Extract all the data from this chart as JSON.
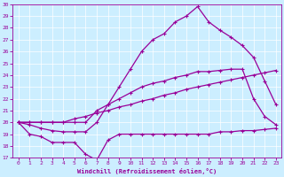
{
  "xlabel": "Windchill (Refroidissement éolien,°C)",
  "bg_color": "#cceeff",
  "line_color": "#990099",
  "xlim": [
    -0.5,
    23.5
  ],
  "ylim": [
    17,
    30
  ],
  "xticks": [
    0,
    1,
    2,
    3,
    4,
    5,
    6,
    7,
    8,
    9,
    10,
    11,
    12,
    13,
    14,
    15,
    16,
    17,
    18,
    19,
    20,
    21,
    22,
    23
  ],
  "yticks": [
    17,
    18,
    19,
    20,
    21,
    22,
    23,
    24,
    25,
    26,
    27,
    28,
    29,
    30
  ],
  "series": [
    {
      "x": [
        0,
        1,
        2,
        3,
        4,
        5,
        6,
        7,
        8,
        9,
        10,
        11,
        12,
        13,
        14,
        15,
        16,
        17,
        18,
        19,
        20,
        21,
        22,
        23
      ],
      "y": [
        20,
        19,
        18.8,
        18.3,
        18.3,
        18.3,
        17.3,
        16.8,
        18.5,
        19.0,
        19.0,
        19.0,
        19.0,
        19.0,
        19.0,
        19.0,
        19.0,
        19.0,
        19.2,
        19.2,
        19.3,
        19.3,
        19.4,
        19.5
      ]
    },
    {
      "x": [
        0,
        1,
        2,
        3,
        4,
        5,
        6,
        7,
        8,
        9,
        10,
        11,
        12,
        13,
        14,
        15,
        16,
        17,
        18,
        19,
        20,
        21,
        22,
        23
      ],
      "y": [
        20,
        20,
        20,
        20,
        20,
        20.3,
        20.5,
        20.8,
        21.0,
        21.3,
        21.5,
        21.8,
        22.0,
        22.3,
        22.5,
        22.8,
        23.0,
        23.2,
        23.4,
        23.6,
        23.8,
        24.0,
        24.2,
        24.4
      ]
    },
    {
      "x": [
        0,
        1,
        2,
        3,
        4,
        5,
        6,
        7,
        8,
        9,
        10,
        11,
        12,
        13,
        14,
        15,
        16,
        17,
        18,
        19,
        20,
        21,
        22,
        23
      ],
      "y": [
        20,
        20,
        20,
        20,
        20,
        20,
        20,
        21,
        21.5,
        22,
        22.5,
        23,
        23.3,
        23.5,
        23.8,
        24,
        24.3,
        24.3,
        24.4,
        24.5,
        24.5,
        22.0,
        20.5,
        19.8
      ]
    },
    {
      "x": [
        0,
        1,
        2,
        3,
        4,
        5,
        6,
        7,
        8,
        9,
        10,
        11,
        12,
        13,
        14,
        15,
        16,
        17,
        18,
        19,
        20,
        21,
        22,
        23
      ],
      "y": [
        20,
        19.8,
        19.5,
        19.3,
        19.2,
        19.2,
        19.2,
        20.0,
        21.5,
        23.0,
        24.5,
        26.0,
        27.0,
        27.5,
        28.5,
        29.0,
        29.8,
        28.5,
        27.8,
        27.2,
        26.5,
        25.5,
        23.5,
        21.5
      ]
    }
  ]
}
